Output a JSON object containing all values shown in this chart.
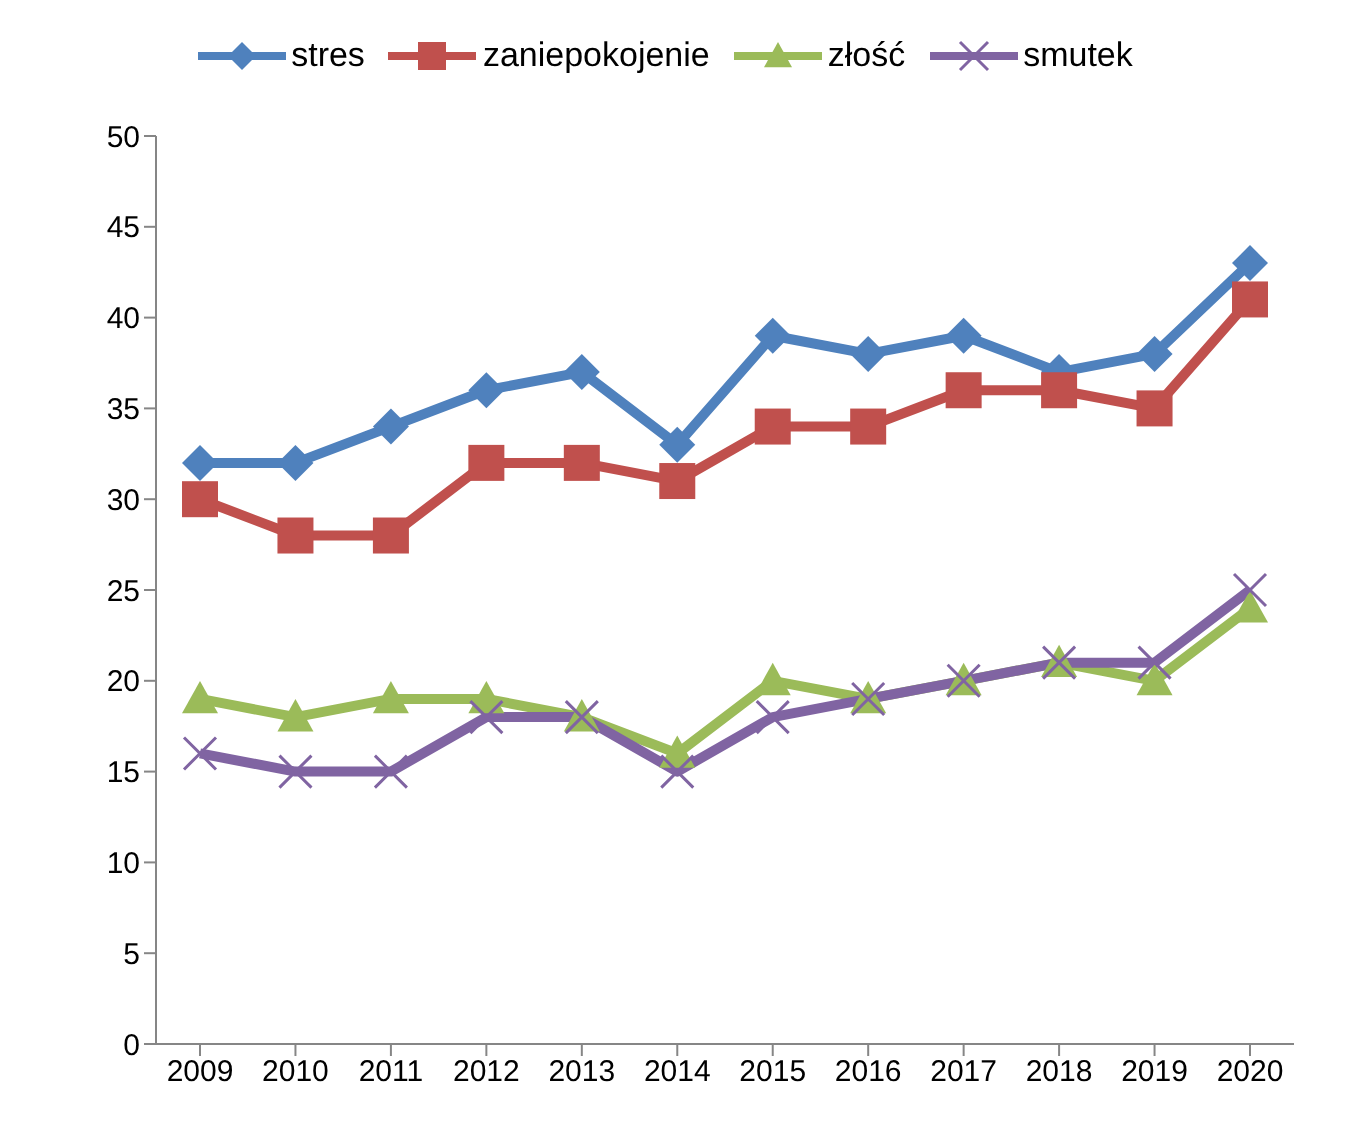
{
  "chart_data": {
    "type": "line",
    "categories": [
      "2009",
      "2010",
      "2011",
      "2012",
      "2013",
      "2014",
      "2015",
      "2016",
      "2017",
      "2018",
      "2019",
      "2020"
    ],
    "series": [
      {
        "name": "stres",
        "color": "#4f81bd",
        "marker": "diamond",
        "values": [
          32,
          32,
          34,
          36,
          37,
          33,
          39,
          38,
          39,
          37,
          38,
          43
        ]
      },
      {
        "name": "zaniepokojenie",
        "color": "#c0504d",
        "marker": "square",
        "values": [
          30,
          28,
          28,
          32,
          32,
          31,
          34,
          34,
          36,
          36,
          35,
          41
        ]
      },
      {
        "name": "złość",
        "color": "#9bbb59",
        "marker": "triangle",
        "values": [
          19,
          18,
          19,
          19,
          18,
          16,
          20,
          19,
          20,
          21,
          20,
          24
        ]
      },
      {
        "name": "smutek",
        "color": "#8064a2",
        "marker": "cross",
        "values": [
          16,
          15,
          15,
          18,
          18,
          15,
          18,
          19,
          20,
          21,
          21,
          25
        ]
      }
    ],
    "ylim": [
      0,
      50
    ],
    "yticks": [
      0,
      5,
      10,
      15,
      20,
      25,
      30,
      35,
      40,
      45,
      50
    ],
    "grid": false,
    "legend": "top",
    "line_style": "solid"
  }
}
